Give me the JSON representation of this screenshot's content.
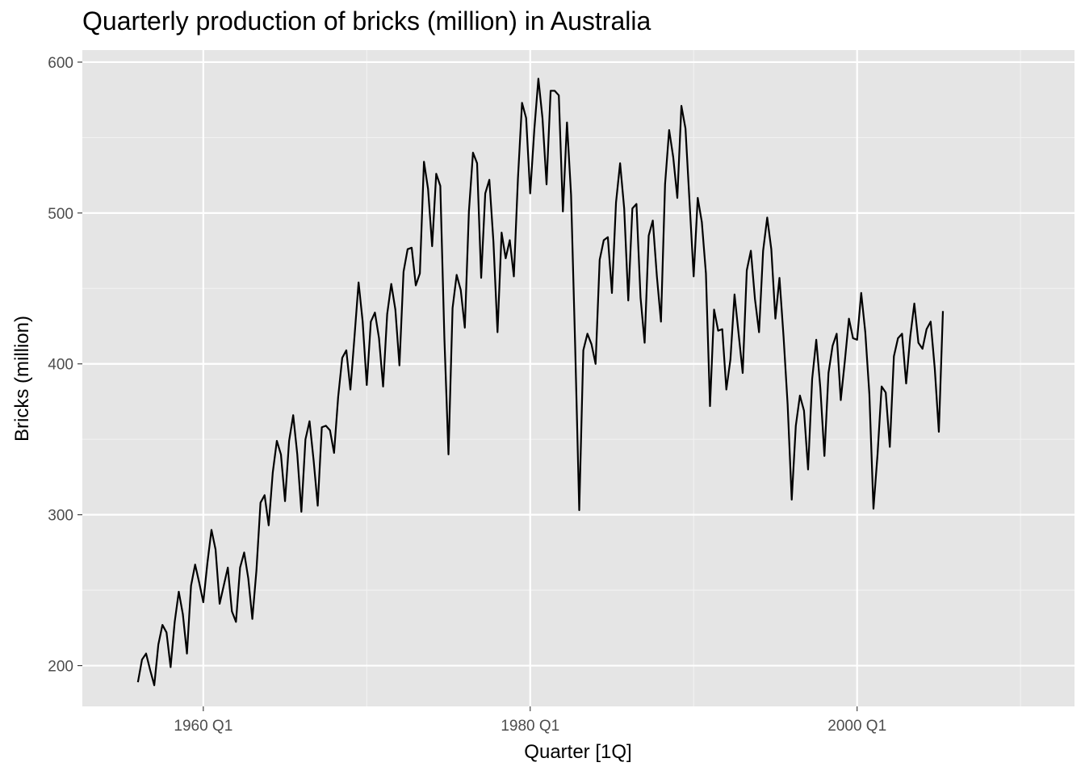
{
  "chart_data": {
    "type": "line",
    "title": "Quarterly production of bricks (million) in Australia",
    "xlabel": "Quarter [1Q]",
    "ylabel": "Bricks (million)",
    "x_ticks": [
      {
        "label": "1960 Q1",
        "value": 1960.0
      },
      {
        "label": "1980 Q1",
        "value": 1980.0
      },
      {
        "label": "2000 Q1",
        "value": 2000.0
      }
    ],
    "y_ticks": [
      200,
      300,
      400,
      500,
      600
    ],
    "xlim": [
      1952.6,
      2013.3
    ],
    "ylim": [
      173,
      608
    ],
    "grid": true,
    "x_start": "1956 Q1",
    "x_end": "2005 Q2",
    "series": [
      {
        "color": "#000000",
        "values": [
          189,
          204,
          208,
          197,
          187,
          214,
          227,
          222,
          199,
          229,
          249,
          234,
          208,
          253,
          267,
          255,
          242,
          268,
          290,
          277,
          241,
          253,
          265,
          236,
          229,
          265,
          275,
          258,
          231,
          263,
          308,
          313,
          293,
          328,
          349,
          340,
          309,
          349,
          366,
          340,
          302,
          350,
          362,
          336,
          306,
          358,
          359,
          356,
          341,
          378,
          404,
          409,
          383,
          418,
          454,
          428,
          386,
          428,
          434,
          417,
          385,
          433,
          453,
          436,
          399,
          461,
          476,
          477,
          452,
          460,
          534,
          516,
          478,
          526,
          518,
          417,
          340,
          437,
          459,
          449,
          424,
          501,
          540,
          533,
          457,
          513,
          522,
          481,
          421,
          487,
          470,
          482,
          458,
          523,
          573,
          563,
          513,
          555,
          589,
          563,
          519,
          581,
          581,
          578,
          501,
          560,
          512,
          412,
          303,
          409,
          420,
          413,
          400,
          469,
          482,
          484,
          447,
          507,
          533,
          503,
          442,
          503,
          506,
          444,
          414,
          485,
          495,
          458,
          428,
          519,
          555,
          537,
          510,
          571,
          556,
          507,
          458,
          510,
          494,
          460,
          372,
          436,
          422,
          423,
          383,
          403,
          446,
          420,
          394,
          462,
          475,
          443,
          421,
          475,
          497,
          476,
          430,
          457,
          418,
          373,
          310,
          359,
          379,
          369,
          330,
          390,
          416,
          384,
          339,
          394,
          412,
          420,
          376,
          402,
          430,
          417,
          416,
          447,
          421,
          380,
          304,
          340,
          385,
          381,
          345,
          405,
          417,
          420,
          387,
          418,
          440,
          414,
          410,
          423,
          428,
          397,
          355,
          435
        ]
      }
    ]
  }
}
